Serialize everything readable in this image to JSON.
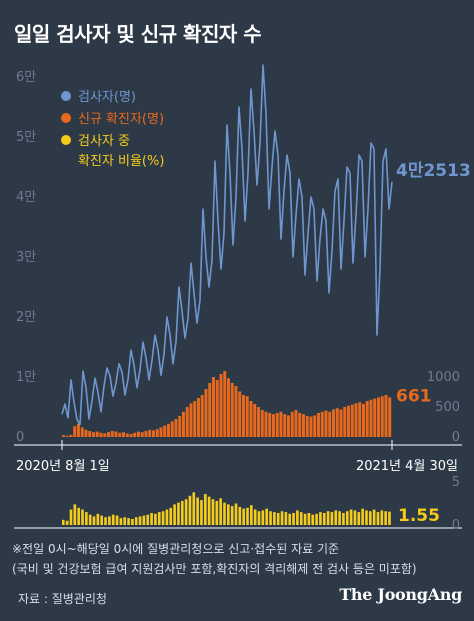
{
  "title": "일일 검사자 및 신규 확진자 수",
  "notes": [
    "※전일 0시~해당일 0시에 질병관리청으로 신고·접수된 자료 기준",
    "(국비 및 건강보험 급여 지원검사만 포함,확진자의 격리해제 전 검사 등은 미포함)"
  ],
  "source": "자료 : 질병관리청",
  "brand": "The JoongAng",
  "colors": {
    "background": "#2e3947",
    "tested": "#6f96cf",
    "confirmed": "#e8691c",
    "rate": "#f4cc1b",
    "axis": "#6d7c8f"
  },
  "chart_data": [
    {
      "type": "line",
      "series": [
        {
          "name": "검사자(명)",
          "color": "#6f96cf",
          "end_label": "4만2513",
          "values": [
            3800,
            5500,
            3200,
            9500,
            5800,
            2900,
            2100,
            11000,
            8200,
            3000,
            6000,
            9800,
            7400,
            4200,
            8500,
            11500,
            10200,
            6800,
            9000,
            12200,
            10800,
            7000,
            9600,
            14500,
            12000,
            8200,
            11200,
            15800,
            13200,
            9500,
            12800,
            17000,
            14500,
            10300,
            13800,
            20000,
            17000,
            12200,
            15900,
            25000,
            21000,
            16500,
            19800,
            29000,
            24000,
            19000,
            22800,
            38000,
            30000,
            25000,
            29500,
            46000,
            36000,
            28000,
            34000,
            52000,
            44000,
            32000,
            40000,
            55000,
            48000,
            36000,
            44000,
            58000,
            51000,
            42000,
            49000,
            62000,
            54000,
            38000,
            45000,
            51000,
            47000,
            33000,
            41000,
            47000,
            44000,
            30000,
            37000,
            43000,
            40000,
            27000,
            34000,
            40000,
            38000,
            26000,
            33000,
            38000,
            36000,
            24000,
            31000,
            41000,
            43000,
            28000,
            36000,
            45000,
            44000,
            29000,
            37000,
            47000,
            46000,
            30000,
            38000,
            49000,
            48000,
            17000,
            28000,
            46000,
            48000,
            38000,
            42513
          ]
        }
      ],
      "yticks": [
        "0",
        "1만",
        "2만",
        "3만",
        "4만",
        "5만",
        "6만"
      ],
      "ylim": [
        0,
        60000
      ]
    },
    {
      "type": "bar",
      "series": [
        {
          "name": "신규 확진자(명)",
          "color": "#e8691c",
          "end_label": "661",
          "values": [
            30,
            20,
            35,
            180,
            220,
            160,
            120,
            100,
            80,
            90,
            70,
            60,
            80,
            100,
            90,
            70,
            80,
            60,
            50,
            70,
            90,
            80,
            100,
            120,
            110,
            130,
            160,
            190,
            220,
            260,
            300,
            350,
            420,
            500,
            560,
            600,
            650,
            700,
            800,
            900,
            1000,
            950,
            1050,
            1100,
            980,
            900,
            850,
            760,
            700,
            680,
            600,
            550,
            500,
            450,
            420,
            400,
            380,
            400,
            420,
            380,
            360,
            420,
            450,
            400,
            380,
            350,
            340,
            360,
            400,
            420,
            440,
            420,
            460,
            480,
            460,
            500,
            520,
            540,
            560,
            580,
            550,
            600,
            620,
            640,
            660,
            680,
            700,
            661
          ]
        }
      ],
      "yticks": [
        "0",
        "500",
        "1000"
      ],
      "ylim": [
        0,
        1000
      ],
      "xticks": [
        "2020년 8월 1일",
        "2021년 4월 30일"
      ]
    },
    {
      "type": "bar",
      "series": [
        {
          "name": "검사자 중 확진자 비율(%)",
          "color": "#f4cc1b",
          "end_label": "1.55",
          "values": [
            0.6,
            0.5,
            1.8,
            2.4,
            2.0,
            1.8,
            1.5,
            1.2,
            1.0,
            1.3,
            1.1,
            0.9,
            1.0,
            1.2,
            1.1,
            0.8,
            0.9,
            0.8,
            0.7,
            0.9,
            1.0,
            1.1,
            1.2,
            1.4,
            1.3,
            1.5,
            1.6,
            1.8,
            2.0,
            2.4,
            2.6,
            2.8,
            3.0,
            3.4,
            3.8,
            3.2,
            2.9,
            3.6,
            3.3,
            3.0,
            2.8,
            3.1,
            2.6,
            2.4,
            2.2,
            2.5,
            2.1,
            1.9,
            2.0,
            2.3,
            1.8,
            1.6,
            1.7,
            1.9,
            1.6,
            1.5,
            1.4,
            1.6,
            1.5,
            1.3,
            1.4,
            1.7,
            1.5,
            1.3,
            1.4,
            1.2,
            1.3,
            1.5,
            1.4,
            1.6,
            1.5,
            1.7,
            1.6,
            1.4,
            1.6,
            1.8,
            1.7,
            1.5,
            1.9,
            1.7,
            1.6,
            1.8,
            1.5,
            1.7,
            1.6,
            1.55
          ]
        }
      ],
      "yticks": [
        "0",
        "5"
      ],
      "ylim": [
        0,
        5
      ]
    }
  ]
}
